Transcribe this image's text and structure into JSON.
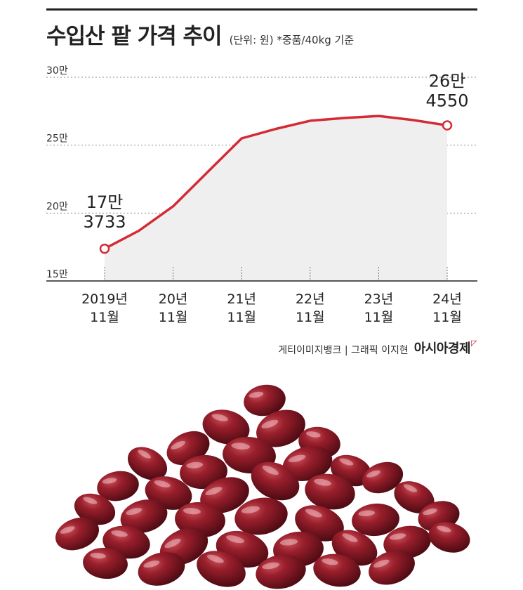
{
  "header": {
    "title": "수입산 팥 가격 추이",
    "subtitle": "(단위: 원) *중품/40kg 기준"
  },
  "footer": {
    "credit": "게티이미지뱅크 | 그래픽 이지현",
    "brand": "아시아경제"
  },
  "colors": {
    "line": "#d42a35",
    "area": "#efefef",
    "grid": "#888888",
    "bean": "#7a1520"
  },
  "chart_data": {
    "type": "area",
    "title": "수입산 팥 가격 추이",
    "unit_note": "(단위: 원) *중품/40kg 기준",
    "x": [
      {
        "year": "2019년",
        "month": "11월"
      },
      {
        "year": "",
        "month": ""
      },
      {
        "year": "20년",
        "month": "11월"
      },
      {
        "year": "",
        "month": ""
      },
      {
        "year": "21년",
        "month": "11월"
      },
      {
        "year": "",
        "month": ""
      },
      {
        "year": "22년",
        "month": "11월"
      },
      {
        "year": "",
        "month": ""
      },
      {
        "year": "23년",
        "month": "11월"
      },
      {
        "year": "",
        "month": ""
      },
      {
        "year": "24년",
        "month": "11월"
      }
    ],
    "tick_positions": [
      0,
      2,
      4,
      6,
      8,
      10
    ],
    "values": [
      173733,
      187000,
      205000,
      230000,
      255000,
      262000,
      268000,
      270000,
      271500,
      268500,
      264550
    ],
    "ylim": [
      150000,
      300000
    ],
    "yticks": [
      {
        "value": 150000,
        "label": "15만"
      },
      {
        "value": 200000,
        "label": "20만"
      },
      {
        "value": 250000,
        "label": "25만"
      },
      {
        "value": 300000,
        "label": "30만"
      }
    ],
    "annotations": [
      {
        "index": 0,
        "line1": "17만",
        "line2": "3733"
      },
      {
        "index": 10,
        "line1": "26만",
        "line2": "4550"
      }
    ],
    "grid": true
  }
}
